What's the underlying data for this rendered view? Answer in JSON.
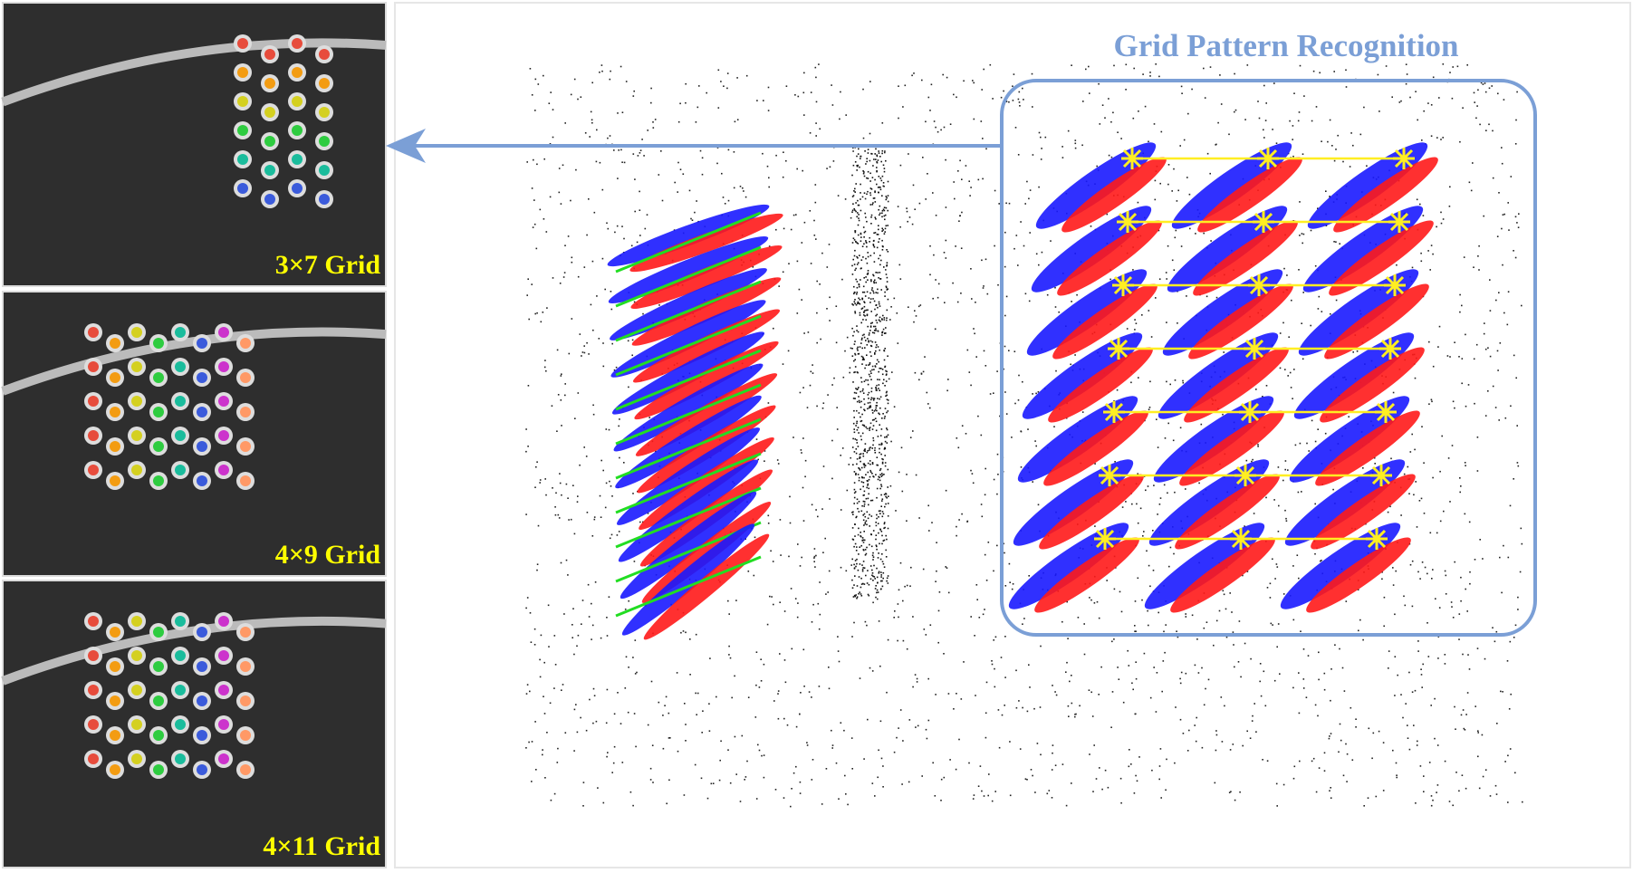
{
  "title": "Grid Pattern Recognition",
  "panels": [
    {
      "label": "3×7 Grid"
    },
    {
      "label": "4×9 Grid"
    },
    {
      "label": "4×11 Grid"
    }
  ]
}
